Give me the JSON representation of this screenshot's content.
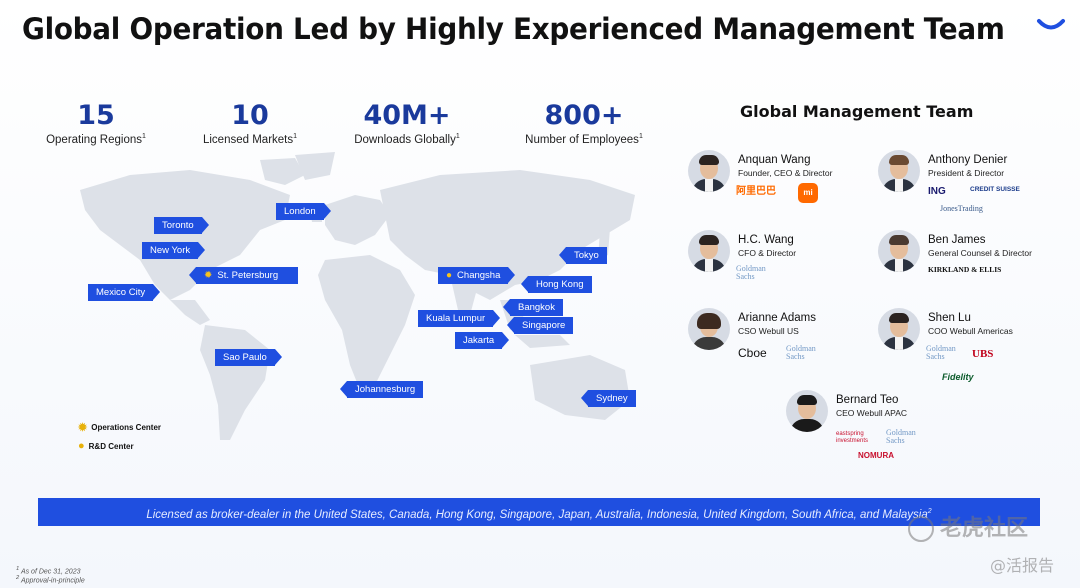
{
  "title": "Global Operation Led by Highly Experienced Management Team",
  "stats": [
    {
      "value": "15",
      "label": "Operating Regions",
      "note": "1"
    },
    {
      "value": "10",
      "label": "Licensed Markets",
      "note": "1"
    },
    {
      "value": "40M+",
      "label": "Downloads Globally",
      "note": "1"
    },
    {
      "value": "800+",
      "label": "Number of Employees",
      "note": "1"
    }
  ],
  "locations": {
    "toronto": "Toronto",
    "new_york": "New York",
    "mexico_city": "Mexico City",
    "london": "London",
    "st_petersburg": "St. Petersburg",
    "sao_paulo": "Sao Paulo",
    "johannesburg": "Johannesburg",
    "changsha": "Changsha",
    "tokyo": "Tokyo",
    "hong_kong": "Hong Kong",
    "bangkok": "Bangkok",
    "kuala_lumpur": "Kuala Lumpur",
    "singapore": "Singapore",
    "jakarta": "Jakarta",
    "sydney": "Sydney"
  },
  "legend": {
    "operations": "Operations Center",
    "rd": "R&D Center"
  },
  "team": {
    "heading": "Global Management Team",
    "members": [
      {
        "name": "Anquan Wang",
        "role": "Founder, CEO & Director",
        "logos": [
          "阿里巴巴",
          "mi"
        ]
      },
      {
        "name": "Anthony Denier",
        "role": "President & Director",
        "logos": [
          "ING",
          "CREDIT SUISSE",
          "JonesTrading"
        ]
      },
      {
        "name": "H.C. Wang",
        "role": "CFO & Director",
        "logos": [
          "Goldman Sachs"
        ]
      },
      {
        "name": "Ben James",
        "role": "General Counsel & Director",
        "logos": [
          "KIRKLAND & ELLIS"
        ]
      },
      {
        "name": "Arianne Adams",
        "role": "CSO Webull US",
        "logos": [
          "Cboe",
          "Goldman Sachs"
        ]
      },
      {
        "name": "Shen Lu",
        "role": "COO Webull Americas",
        "logos": [
          "Goldman Sachs",
          "UBS",
          "Fidelity"
        ]
      },
      {
        "name": "Bernard Teo",
        "role": "CEO Webull APAC",
        "logos": [
          "eastspring investments",
          "Goldman Sachs",
          "NOMURA"
        ]
      }
    ]
  },
  "banner": "Licensed as broker-dealer in the United States, Canada, Hong Kong, Singapore, Japan, Australia, Indonesia, United Kingdom, South Africa, and Malaysia",
  "banner_note": "2",
  "footnotes": [
    "As of Dec 31, 2023",
    "Approval-in-principle"
  ],
  "watermark": {
    "main": "老虎社区",
    "sub": "@活报告"
  },
  "colors": {
    "accent": "#1f4fe0",
    "stat": "#1a3a9c",
    "icon": "#f6c21c"
  }
}
